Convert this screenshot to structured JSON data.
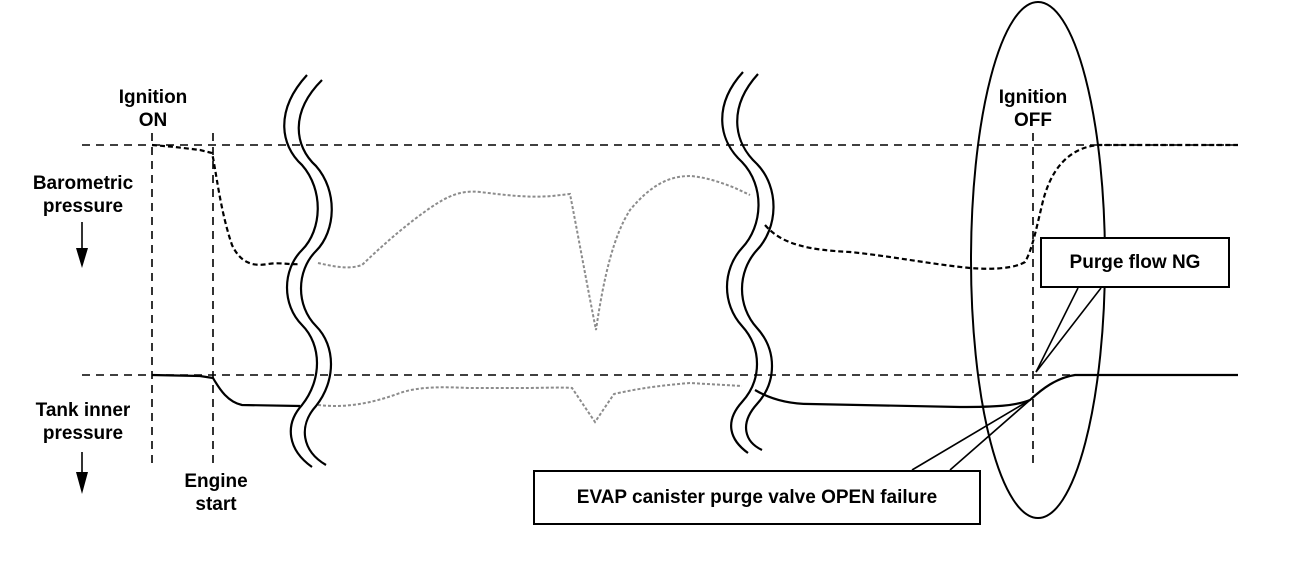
{
  "labels": {
    "ignition_on": [
      "Ignition",
      "ON"
    ],
    "ignition_off": [
      "Ignition",
      "OFF"
    ],
    "barometric": [
      "Barometric",
      "pressure"
    ],
    "tank_inner": [
      "Tank inner",
      "pressure"
    ],
    "engine_start": [
      "Engine",
      "start"
    ]
  },
  "callouts": {
    "purge_flow": "Purge flow NG",
    "evap_failure": "EVAP canister purge valve OPEN failure"
  },
  "colors": {
    "line": "#000000",
    "faded_trace": "#8c8c8c"
  }
}
